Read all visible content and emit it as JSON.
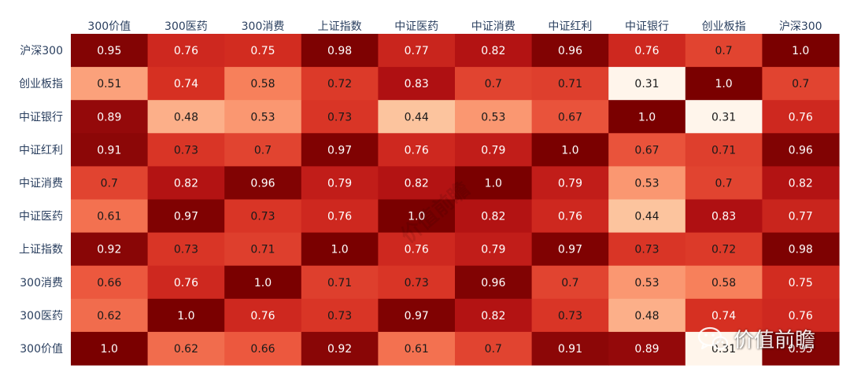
{
  "chart_data": {
    "type": "heatmap",
    "title": "",
    "xlabel": "",
    "ylabel": "",
    "columns": [
      "300价值",
      "300医药",
      "300消费",
      "上证指数",
      "中证医药",
      "中证消费",
      "中证红利",
      "中证银行",
      "创业板指",
      "沪深300"
    ],
    "rows": [
      "沪深300",
      "创业板指",
      "中证银行",
      "中证红利",
      "中证消费",
      "中证医药",
      "上证指数",
      "300消费",
      "300医药",
      "300价值"
    ],
    "values": [
      [
        0.95,
        0.76,
        0.75,
        0.98,
        0.77,
        0.82,
        0.96,
        0.76,
        0.7,
        1.0
      ],
      [
        0.51,
        0.74,
        0.58,
        0.72,
        0.83,
        0.7,
        0.71,
        0.31,
        1.0,
        0.7
      ],
      [
        0.89,
        0.48,
        0.53,
        0.73,
        0.44,
        0.53,
        0.67,
        1.0,
        0.31,
        0.76
      ],
      [
        0.91,
        0.73,
        0.7,
        0.97,
        0.76,
        0.79,
        1.0,
        0.67,
        0.71,
        0.96
      ],
      [
        0.7,
        0.82,
        0.96,
        0.79,
        0.82,
        1.0,
        0.79,
        0.53,
        0.7,
        0.82
      ],
      [
        0.61,
        0.97,
        0.73,
        0.76,
        1.0,
        0.82,
        0.76,
        0.44,
        0.83,
        0.77
      ],
      [
        0.92,
        0.73,
        0.71,
        1.0,
        0.76,
        0.79,
        0.97,
        0.73,
        0.72,
        0.98
      ],
      [
        0.66,
        0.76,
        1.0,
        0.71,
        0.73,
        0.96,
        0.7,
        0.53,
        0.58,
        0.75
      ],
      [
        0.62,
        1.0,
        0.76,
        0.73,
        0.97,
        0.82,
        0.73,
        0.48,
        0.74,
        0.76
      ],
      [
        1.0,
        0.62,
        0.66,
        0.92,
        0.61,
        0.7,
        0.91,
        0.89,
        0.31,
        0.95
      ]
    ],
    "value_labels": [
      [
        "0.95",
        "0.76",
        "0.75",
        "0.98",
        "0.77",
        "0.82",
        "0.96",
        "0.76",
        "0.7",
        "1.0"
      ],
      [
        "0.51",
        "0.74",
        "0.58",
        "0.72",
        "0.83",
        "0.7",
        "0.71",
        "0.31",
        "1.0",
        "0.7"
      ],
      [
        "0.89",
        "0.48",
        "0.53",
        "0.73",
        "0.44",
        "0.53",
        "0.67",
        "1.0",
        "0.31",
        "0.76"
      ],
      [
        "0.91",
        "0.73",
        "0.7",
        "0.97",
        "0.76",
        "0.79",
        "1.0",
        "0.67",
        "0.71",
        "0.96"
      ],
      [
        "0.7",
        "0.82",
        "0.96",
        "0.79",
        "0.82",
        "1.0",
        "0.79",
        "0.53",
        "0.7",
        "0.82"
      ],
      [
        "0.61",
        "0.97",
        "0.73",
        "0.76",
        "1.0",
        "0.82",
        "0.76",
        "0.44",
        "0.83",
        "0.77"
      ],
      [
        "0.92",
        "0.73",
        "0.71",
        "1.0",
        "0.76",
        "0.79",
        "0.97",
        "0.73",
        "0.72",
        "0.98"
      ],
      [
        "0.66",
        "0.76",
        "1.0",
        "0.71",
        "0.73",
        "0.96",
        "0.7",
        "0.53",
        "0.58",
        "0.75"
      ],
      [
        "0.62",
        "1.0",
        "0.76",
        "0.73",
        "0.97",
        "0.82",
        "0.73",
        "0.48",
        "0.74",
        "0.76"
      ],
      [
        "1.0",
        "0.62",
        "0.66",
        "0.92",
        "0.61",
        "0.7",
        "0.91",
        "0.89",
        "0.31",
        "0.95"
      ]
    ],
    "zlim": [
      0.31,
      1.0
    ],
    "colorscale": [
      "#fff5eb",
      "#fddbb4",
      "#fcae88",
      "#f8855f",
      "#ed5b40",
      "#d62f22",
      "#b01012",
      "#8a0707",
      "#7a0000"
    ],
    "grid": false,
    "legend": "none",
    "x_axis_position": "top"
  },
  "watermark": {
    "icon": "wechat-icon",
    "text": "价值前瞻"
  }
}
